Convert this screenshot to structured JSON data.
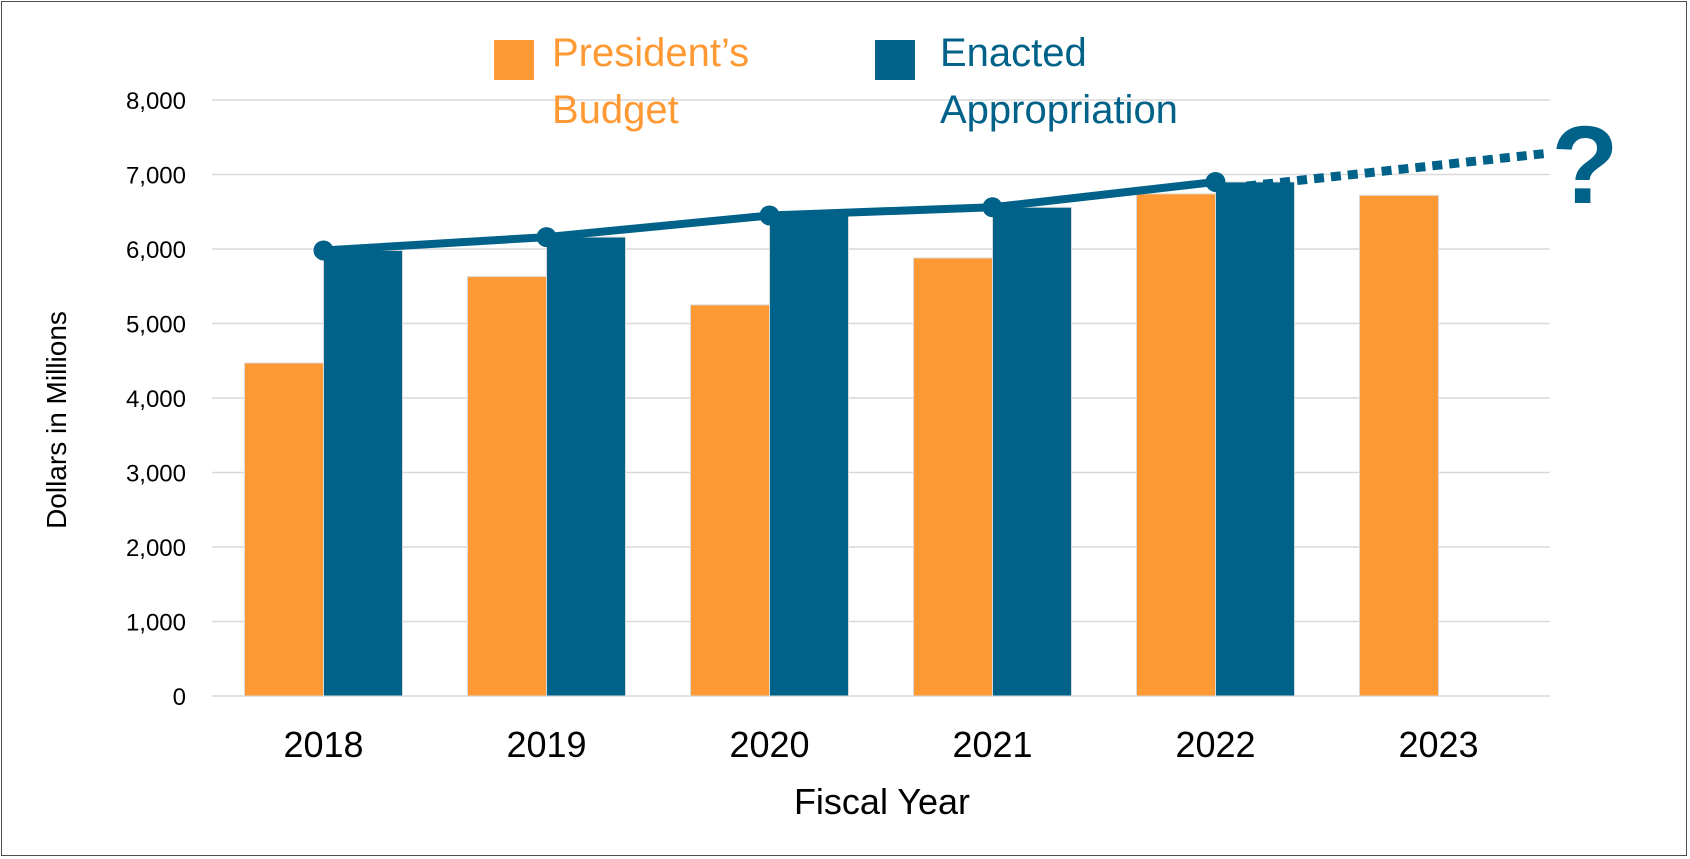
{
  "chart_data": {
    "type": "bar",
    "categories": [
      "2018",
      "2019",
      "2020",
      "2021",
      "2022",
      "2023"
    ],
    "series": [
      {
        "name": "President's Budget",
        "values": [
          4470,
          5630,
          5250,
          5880,
          6740,
          6720
        ],
        "color": "#ff9933"
      },
      {
        "name": "Enacted Appropriation",
        "values": [
          5980,
          6160,
          6450,
          6560,
          6900,
          null
        ],
        "color": "#006289"
      }
    ],
    "trend_line": {
      "series": "Enacted Appropriation",
      "color": "#006289",
      "projected": true,
      "projection_mark": "?"
    },
    "xlabel": "Fiscal Year",
    "ylabel": "Dollars in Millions",
    "ylim": [
      0,
      8000
    ],
    "yticks": [
      "0",
      "1,000",
      "2,000",
      "3,000",
      "4,000",
      "5,000",
      "6,000",
      "7,000",
      "8,000"
    ],
    "legend": {
      "placement": "top",
      "items": [
        {
          "lines": [
            "President’s",
            "Budget"
          ],
          "color": "#ff9933"
        },
        {
          "lines": [
            "Enacted",
            "Appropriation"
          ],
          "color": "#006289"
        }
      ]
    },
    "grid": true
  }
}
